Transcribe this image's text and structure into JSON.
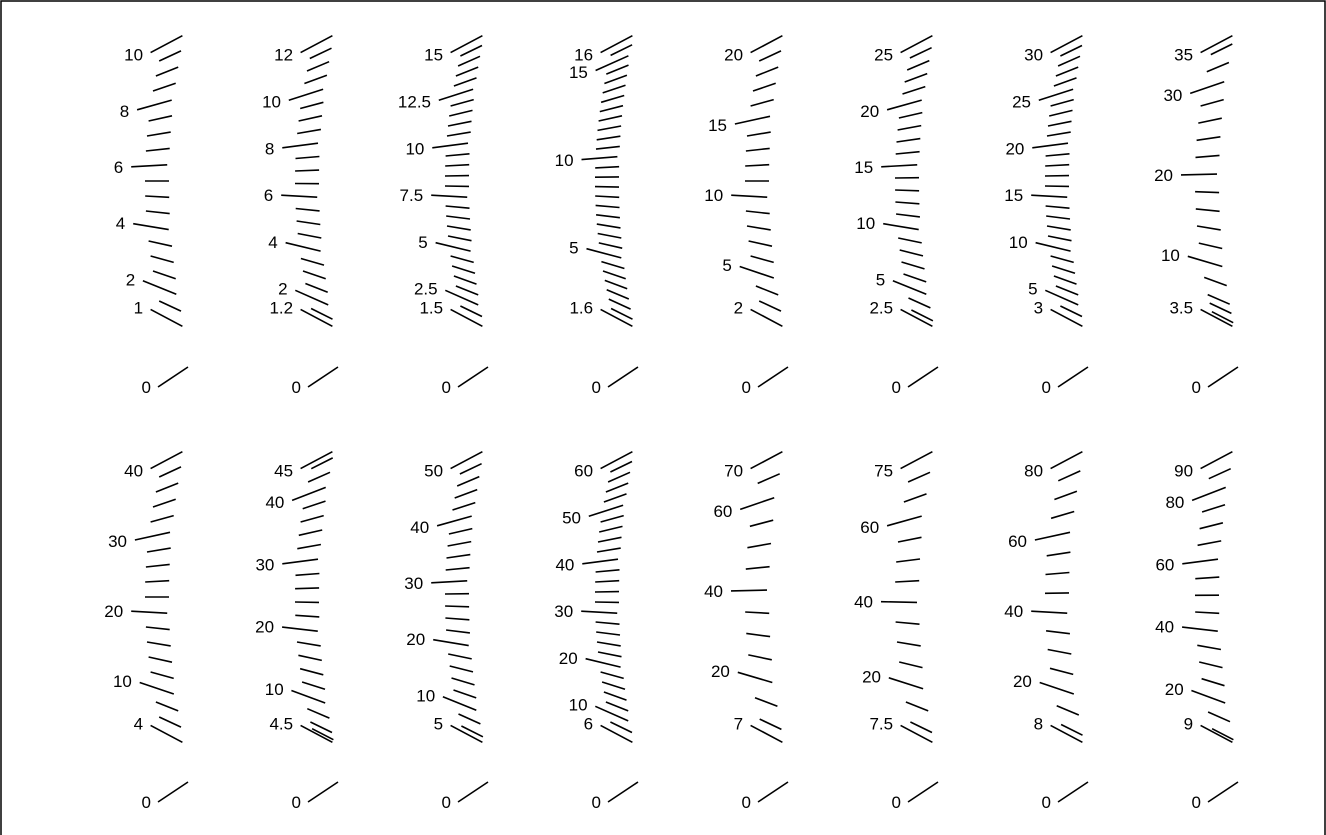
{
  "scales": [
    {
      "labels": [
        {
          "text": "10",
          "v": 10
        },
        {
          "text": "8",
          "v": 8
        },
        {
          "text": "6",
          "v": 6
        },
        {
          "text": "4",
          "v": 4
        },
        {
          "text": "2",
          "v": 2
        },
        {
          "text": "1",
          "v": 1
        }
      ],
      "zero": "0",
      "min": 1,
      "max": 10,
      "ticks": [
        1,
        1.5,
        2,
        2.5,
        3,
        3.5,
        4,
        4.5,
        5,
        5.5,
        6,
        6.5,
        7,
        7.5,
        8,
        8.5,
        9,
        9.5,
        10
      ]
    },
    {
      "labels": [
        {
          "text": "12",
          "v": 12
        },
        {
          "text": "10",
          "v": 10
        },
        {
          "text": "8",
          "v": 8
        },
        {
          "text": "6",
          "v": 6
        },
        {
          "text": "4",
          "v": 4
        },
        {
          "text": "2",
          "v": 2
        },
        {
          "text": "1.2",
          "v": 1.2
        }
      ],
      "zero": "0",
      "min": 1.2,
      "max": 12,
      "ticks": [
        1.2,
        1.5,
        2,
        2.5,
        3,
        3.5,
        4,
        4.5,
        5,
        5.5,
        6,
        6.5,
        7,
        7.5,
        8,
        8.5,
        9,
        9.5,
        10,
        10.5,
        11,
        11.5,
        12
      ]
    },
    {
      "labels": [
        {
          "text": "15",
          "v": 15
        },
        {
          "text": "12.5",
          "v": 12.5
        },
        {
          "text": "10",
          "v": 10
        },
        {
          "text": "7.5",
          "v": 7.5
        },
        {
          "text": "5",
          "v": 5
        },
        {
          "text": "2.5",
          "v": 2.5
        },
        {
          "text": "1.5",
          "v": 1.5
        }
      ],
      "zero": "0",
      "min": 1.5,
      "max": 15,
      "ticks": [
        1.5,
        2,
        2.5,
        3,
        3.5,
        4,
        4.5,
        5,
        5.5,
        6,
        6.5,
        7,
        7.5,
        8,
        8.5,
        9,
        9.5,
        10,
        10.5,
        11,
        11.5,
        12,
        12.5,
        13,
        13.5,
        14,
        14.5,
        15
      ]
    },
    {
      "labels": [
        {
          "text": "16",
          "v": 16
        },
        {
          "text": "15",
          "v": 15
        },
        {
          "text": "10",
          "v": 10
        },
        {
          "text": "5",
          "v": 5
        },
        {
          "text": "1.6",
          "v": 1.6
        }
      ],
      "zero": "0",
      "min": 1.6,
      "max": 16,
      "ticks": [
        1.6,
        2,
        2.5,
        3,
        3.5,
        4,
        4.5,
        5,
        5.5,
        6,
        6.5,
        7,
        7.5,
        8,
        8.5,
        9,
        9.5,
        10,
        10.5,
        11,
        11.5,
        12,
        12.5,
        13,
        13.5,
        14,
        14.5,
        15,
        15.5,
        16
      ]
    },
    {
      "labels": [
        {
          "text": "20",
          "v": 20
        },
        {
          "text": "15",
          "v": 15
        },
        {
          "text": "10",
          "v": 10
        },
        {
          "text": "5",
          "v": 5
        },
        {
          "text": "2",
          "v": 2
        }
      ],
      "zero": "0",
      "min": 2,
      "max": 20,
      "ticks": [
        2,
        3,
        4,
        5,
        6,
        7,
        8,
        9,
        10,
        11,
        12,
        13,
        14,
        15,
        16,
        17,
        18,
        19,
        20
      ]
    },
    {
      "labels": [
        {
          "text": "25",
          "v": 25
        },
        {
          "text": "20",
          "v": 20
        },
        {
          "text": "15",
          "v": 15
        },
        {
          "text": "10",
          "v": 10
        },
        {
          "text": "5",
          "v": 5
        },
        {
          "text": "2.5",
          "v": 2.5
        }
      ],
      "zero": "0",
      "min": 2.5,
      "max": 25,
      "ticks": [
        2.5,
        3,
        4,
        5,
        6,
        7,
        8,
        9,
        10,
        11,
        12,
        13,
        14,
        15,
        16,
        17,
        18,
        19,
        20,
        21,
        22,
        23,
        24,
        25
      ]
    },
    {
      "labels": [
        {
          "text": "30",
          "v": 30
        },
        {
          "text": "25",
          "v": 25
        },
        {
          "text": "20",
          "v": 20
        },
        {
          "text": "15",
          "v": 15
        },
        {
          "text": "10",
          "v": 10
        },
        {
          "text": "5",
          "v": 5
        },
        {
          "text": "3",
          "v": 3
        }
      ],
      "zero": "0",
      "min": 3,
      "max": 30,
      "ticks": [
        3,
        4,
        5,
        6,
        7,
        8,
        9,
        10,
        11,
        12,
        13,
        14,
        15,
        16,
        17,
        18,
        19,
        20,
        21,
        22,
        23,
        24,
        25,
        26,
        27,
        28,
        29,
        30
      ]
    },
    {
      "labels": [
        {
          "text": "35",
          "v": 35
        },
        {
          "text": "30",
          "v": 30
        },
        {
          "text": "20",
          "v": 20
        },
        {
          "text": "10",
          "v": 10
        },
        {
          "text": "3.5",
          "v": 3.5
        }
      ],
      "zero": "0",
      "min": 3.5,
      "max": 35,
      "ticks": [
        3.5,
        4,
        5,
        6,
        8,
        10,
        12,
        14,
        16,
        18,
        20,
        22,
        24,
        26,
        28,
        30,
        32,
        34,
        35
      ]
    },
    {
      "labels": [
        {
          "text": "40",
          "v": 40
        },
        {
          "text": "30",
          "v": 30
        },
        {
          "text": "20",
          "v": 20
        },
        {
          "text": "10",
          "v": 10
        },
        {
          "text": "4",
          "v": 4
        }
      ],
      "zero": "0",
      "min": 4,
      "max": 40,
      "ticks": [
        4,
        6,
        8,
        10,
        12,
        14,
        16,
        18,
        20,
        22,
        24,
        26,
        28,
        30,
        32,
        34,
        36,
        38,
        40
      ]
    },
    {
      "labels": [
        {
          "text": "45",
          "v": 45
        },
        {
          "text": "40",
          "v": 40
        },
        {
          "text": "30",
          "v": 30
        },
        {
          "text": "20",
          "v": 20
        },
        {
          "text": "10",
          "v": 10
        },
        {
          "text": "4.5",
          "v": 4.5
        }
      ],
      "zero": "0",
      "min": 4.5,
      "max": 45,
      "ticks": [
        4.5,
        5,
        6,
        8,
        10,
        12,
        14,
        16,
        18,
        20,
        22,
        24,
        26,
        28,
        30,
        32,
        34,
        36,
        38,
        40,
        42,
        44,
        45
      ]
    },
    {
      "labels": [
        {
          "text": "50",
          "v": 50
        },
        {
          "text": "40",
          "v": 40
        },
        {
          "text": "30",
          "v": 30
        },
        {
          "text": "20",
          "v": 20
        },
        {
          "text": "10",
          "v": 10
        },
        {
          "text": "5",
          "v": 5
        }
      ],
      "zero": "0",
      "min": 5,
      "max": 50,
      "ticks": [
        5,
        6,
        8,
        10,
        12,
        14,
        16,
        18,
        20,
        22,
        24,
        26,
        28,
        30,
        32,
        34,
        36,
        38,
        40,
        42,
        44,
        46,
        48,
        50
      ]
    },
    {
      "labels": [
        {
          "text": "60",
          "v": 60
        },
        {
          "text": "50",
          "v": 50
        },
        {
          "text": "40",
          "v": 40
        },
        {
          "text": "30",
          "v": 30
        },
        {
          "text": "20",
          "v": 20
        },
        {
          "text": "10",
          "v": 10
        },
        {
          "text": "6",
          "v": 6
        }
      ],
      "zero": "0",
      "min": 6,
      "max": 60,
      "ticks": [
        6,
        8,
        10,
        12,
        14,
        16,
        18,
        20,
        22,
        24,
        26,
        28,
        30,
        32,
        34,
        36,
        38,
        40,
        42,
        44,
        46,
        48,
        50,
        52,
        54,
        56,
        58,
        60
      ]
    },
    {
      "labels": [
        {
          "text": "70",
          "v": 70
        },
        {
          "text": "60",
          "v": 60
        },
        {
          "text": "40",
          "v": 40
        },
        {
          "text": "20",
          "v": 20
        },
        {
          "text": "7",
          "v": 7
        }
      ],
      "zero": "0",
      "min": 7,
      "max": 70,
      "ticks": [
        7,
        10,
        15,
        20,
        25,
        30,
        35,
        40,
        45,
        50,
        55,
        60,
        65,
        70
      ]
    },
    {
      "labels": [
        {
          "text": "75",
          "v": 75
        },
        {
          "text": "60",
          "v": 60
        },
        {
          "text": "40",
          "v": 40
        },
        {
          "text": "20",
          "v": 20
        },
        {
          "text": "7.5",
          "v": 7.5
        }
      ],
      "zero": "0",
      "min": 7.5,
      "max": 75,
      "ticks": [
        7.5,
        10,
        15,
        20,
        25,
        30,
        35,
        40,
        45,
        50,
        55,
        60,
        65,
        70,
        75
      ]
    },
    {
      "labels": [
        {
          "text": "80",
          "v": 80
        },
        {
          "text": "60",
          "v": 60
        },
        {
          "text": "40",
          "v": 40
        },
        {
          "text": "20",
          "v": 20
        },
        {
          "text": "8",
          "v": 8
        }
      ],
      "zero": "0",
      "min": 8,
      "max": 80,
      "ticks": [
        8,
        10,
        15,
        20,
        25,
        30,
        35,
        40,
        45,
        50,
        55,
        60,
        65,
        70,
        75,
        80
      ]
    },
    {
      "labels": [
        {
          "text": "90",
          "v": 90
        },
        {
          "text": "80",
          "v": 80
        },
        {
          "text": "60",
          "v": 60
        },
        {
          "text": "40",
          "v": 40
        },
        {
          "text": "20",
          "v": 20
        },
        {
          "text": "9",
          "v": 9
        }
      ],
      "zero": "0",
      "min": 9,
      "max": 90,
      "ticks": [
        9,
        10,
        15,
        20,
        25,
        30,
        35,
        40,
        45,
        50,
        55,
        60,
        65,
        70,
        75,
        80,
        85,
        90
      ]
    }
  ]
}
